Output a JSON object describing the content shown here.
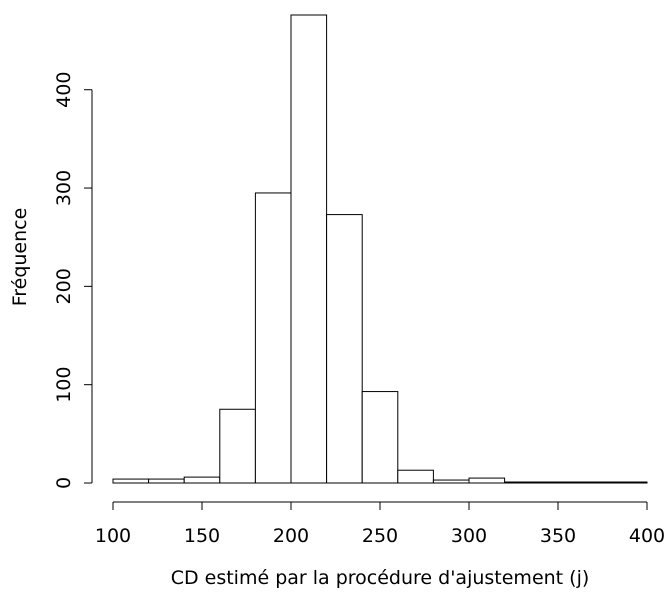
{
  "chart_data": {
    "type": "bar",
    "title": "",
    "xlabel": "CD estimé par la procédure d'ajustement (j)",
    "ylabel": "Fréquence",
    "bin_edges": [
      100,
      120,
      140,
      160,
      180,
      200,
      220,
      240,
      260,
      280,
      300,
      320,
      340,
      360,
      380,
      400
    ],
    "values": [
      4,
      4,
      6,
      75,
      295,
      476,
      273,
      93,
      13,
      3,
      5,
      1,
      1,
      1,
      1
    ],
    "xlim": [
      100,
      400
    ],
    "ylim": [
      0,
      476
    ],
    "x_ticks": [
      100,
      150,
      200,
      250,
      300,
      350,
      400
    ],
    "y_ticks": [
      0,
      100,
      200,
      300,
      400
    ],
    "grid": false,
    "legend": "none"
  }
}
